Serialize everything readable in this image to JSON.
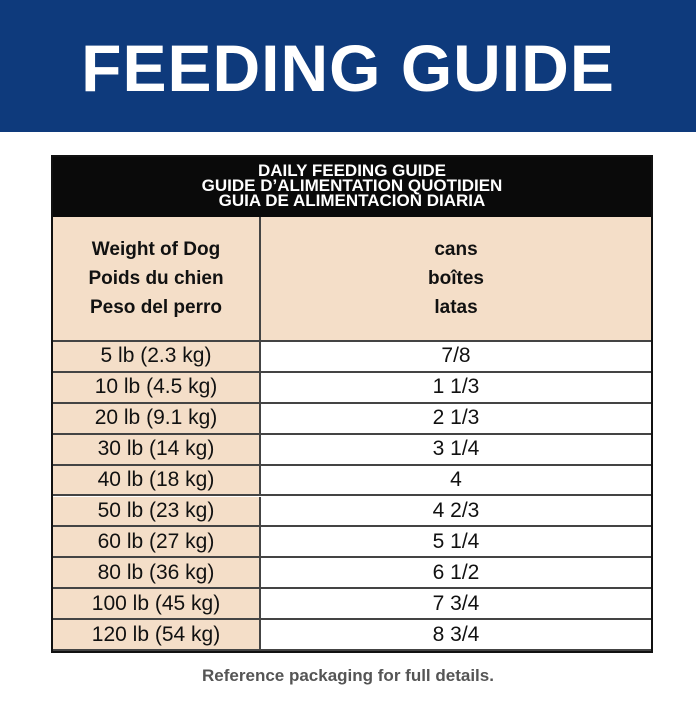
{
  "header": {
    "title": "FEEDING GUIDE"
  },
  "table": {
    "caption": [
      "DAILY FEEDING GUIDE",
      "GUIDE D’ALIMENTATION QUOTIDIEN",
      "GUIA DE ALIMENTACION DIARIA"
    ],
    "columns": [
      [
        "Weight of Dog",
        "Poids du chien",
        "Peso del perro"
      ],
      [
        "cans",
        "boîtes",
        "latas"
      ]
    ],
    "rows": [
      [
        "5 lb (2.3 kg)",
        "7/8"
      ],
      [
        "10 lb (4.5 kg)",
        "1 1/3"
      ],
      [
        "20 lb (9.1 kg)",
        "2 1/3"
      ],
      [
        "30 lb (14 kg)",
        "3 1/4"
      ],
      [
        "40 lb (18 kg)",
        "4"
      ],
      [
        "50 lb (23 kg)",
        "4 2/3"
      ],
      [
        "60 lb (27 kg)",
        "5 1/4"
      ],
      [
        "80 lb (36 kg)",
        "6 1/2"
      ],
      [
        "100 lb (45 kg)",
        "7 3/4"
      ],
      [
        "120 lb (54 kg)",
        "8 3/4"
      ]
    ]
  },
  "footer": {
    "note": "Reference packaging for full details."
  }
}
